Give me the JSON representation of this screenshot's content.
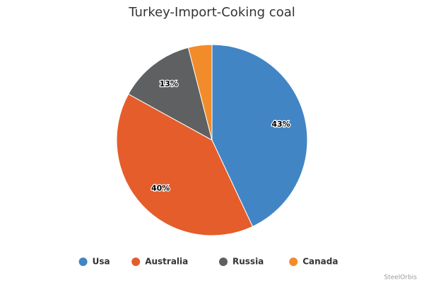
{
  "chart_data": {
    "type": "pie",
    "title": "Turkey-Import-Coking coal",
    "categories": [
      "Usa",
      "Australia",
      "Russia",
      "Canada"
    ],
    "values": [
      43,
      40,
      13,
      4
    ],
    "value_labels": [
      "43%",
      "40%",
      "13%",
      null
    ],
    "colors": [
      "#4285c5",
      "#e55d2b",
      "#5f6062",
      "#f28b2a"
    ],
    "credit": "SteelOrbis"
  }
}
